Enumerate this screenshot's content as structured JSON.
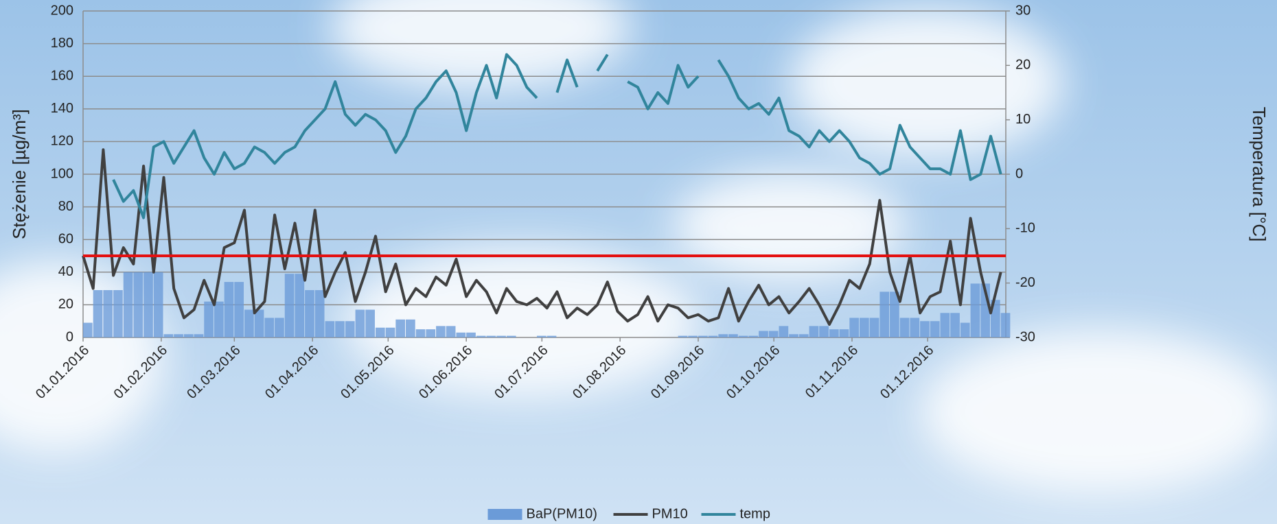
{
  "chart_data": {
    "type": "combo",
    "y_label": "Stężenie [µg/m³]",
    "y2_label": "Temperatura [°C]",
    "x": [
      "01.01.2016",
      "05.01.2016",
      "09.01.2016",
      "13.01.2016",
      "17.01.2016",
      "21.01.2016",
      "25.01.2016",
      "29.01.2016",
      "02.02.2016",
      "06.02.2016",
      "10.02.2016",
      "14.02.2016",
      "18.02.2016",
      "22.02.2016",
      "26.02.2016",
      "01.03.2016",
      "05.03.2016",
      "09.03.2016",
      "13.03.2016",
      "17.03.2016",
      "21.03.2016",
      "25.03.2016",
      "29.03.2016",
      "02.04.2016",
      "06.04.2016",
      "10.04.2016",
      "14.04.2016",
      "18.04.2016",
      "22.04.2016",
      "26.04.2016",
      "30.04.2016",
      "04.05.2016",
      "08.05.2016",
      "12.05.2016",
      "16.05.2016",
      "20.05.2016",
      "24.05.2016",
      "28.05.2016",
      "01.06.2016",
      "05.06.2016",
      "09.06.2016",
      "13.06.2016",
      "17.06.2016",
      "21.06.2016",
      "25.06.2016",
      "29.06.2016",
      "03.07.2016",
      "07.07.2016",
      "11.07.2016",
      "15.07.2016",
      "19.07.2016",
      "23.07.2016",
      "27.07.2016",
      "31.07.2016",
      "04.08.2016",
      "08.08.2016",
      "12.08.2016",
      "16.08.2016",
      "20.08.2016",
      "24.08.2016",
      "28.08.2016",
      "01.09.2016",
      "05.09.2016",
      "09.09.2016",
      "13.09.2016",
      "17.09.2016",
      "21.09.2016",
      "25.09.2016",
      "29.09.2016",
      "03.10.2016",
      "07.10.2016",
      "11.10.2016",
      "15.10.2016",
      "19.10.2016",
      "23.10.2016",
      "27.10.2016",
      "31.10.2016",
      "04.11.2016",
      "08.11.2016",
      "12.11.2016",
      "16.11.2016",
      "20.11.2016",
      "24.11.2016",
      "28.11.2016",
      "02.12.2016",
      "06.12.2016",
      "10.12.2016",
      "14.12.2016",
      "18.12.2016",
      "22.12.2016",
      "26.12.2016",
      "30.12.2016"
    ],
    "series": [
      {
        "name": "BaP(PM10)",
        "kind": "bar",
        "color": "#6b9bd8",
        "values": [
          9,
          29,
          29,
          29,
          40,
          40,
          40,
          40,
          2,
          2,
          2,
          2,
          22,
          22,
          34,
          34,
          17,
          17,
          12,
          12,
          39,
          39,
          29,
          29,
          10,
          10,
          10,
          17,
          17,
          6,
          6,
          11,
          11,
          5,
          5,
          7,
          7,
          3,
          3,
          1,
          1,
          1,
          1,
          0,
          0,
          1,
          1,
          0,
          0,
          0,
          0,
          0,
          0,
          0,
          0,
          0,
          0,
          0,
          0,
          1,
          1,
          1,
          1,
          2,
          2,
          1,
          1,
          4,
          4,
          7,
          2,
          2,
          7,
          7,
          5,
          5,
          12,
          12,
          12,
          28,
          28,
          12,
          12,
          10,
          10,
          15,
          15,
          9,
          33,
          33,
          23,
          15
        ]
      },
      {
        "name": "PM10",
        "kind": "line",
        "color": "#404040",
        "values": [
          50,
          30,
          115,
          38,
          55,
          45,
          105,
          40,
          98,
          30,
          12,
          17,
          35,
          20,
          55,
          58,
          78,
          15,
          22,
          75,
          42,
          70,
          35,
          78,
          25,
          40,
          52,
          22,
          40,
          62,
          28,
          45,
          20,
          30,
          25,
          37,
          32,
          48,
          25,
          35,
          28,
          15,
          30,
          22,
          20,
          24,
          18,
          28,
          12,
          18,
          14,
          20,
          34,
          16,
          10,
          14,
          25,
          10,
          20,
          18,
          12,
          14,
          10,
          12,
          30,
          10,
          22,
          32,
          20,
          25,
          15,
          22,
          30,
          20,
          8,
          20,
          35,
          30,
          45,
          84,
          40,
          22,
          50,
          15,
          25,
          28,
          59,
          20,
          73,
          40,
          15,
          40
        ]
      },
      {
        "name": "temp",
        "kind": "line",
        "axis": "y2",
        "color": "#31859c",
        "values": [
          null,
          null,
          null,
          -1,
          -5,
          -3,
          -8,
          5,
          6,
          2,
          5,
          8,
          3,
          0,
          4,
          1,
          2,
          5,
          4,
          2,
          4,
          5,
          8,
          10,
          12,
          17,
          11,
          9,
          11,
          10,
          8,
          4,
          7,
          12,
          14,
          17,
          19,
          15,
          8,
          15,
          20,
          14,
          22,
          20,
          16,
          14,
          null,
          15,
          21,
          16,
          null,
          19,
          22,
          null,
          17,
          16,
          12,
          15,
          13,
          20,
          16,
          18,
          null,
          21,
          18,
          14,
          12,
          13,
          11,
          14,
          8,
          7,
          5,
          8,
          6,
          8,
          6,
          3,
          2,
          0,
          1,
          9,
          5,
          3,
          1,
          1,
          0,
          8,
          -1,
          0,
          7,
          0
        ]
      }
    ],
    "limit": 50,
    "limit_color": "#e41010",
    "xlim": [
      "01.01.2016",
      "01.01.2017"
    ],
    "xticks": [
      "01.01.2016",
      "01.02.2016",
      "01.03.2016",
      "01.04.2016",
      "01.05.2016",
      "01.06.2016",
      "01.07.2016",
      "01.08.2016",
      "01.09.2016",
      "01.10.2016",
      "01.11.2016",
      "01.12.2016"
    ],
    "ylim": [
      0,
      200
    ],
    "yticks": [
      0,
      20,
      40,
      60,
      80,
      100,
      120,
      140,
      160,
      180,
      200
    ],
    "y2lim": [
      -30,
      30
    ],
    "y2ticks": [
      -30,
      -20,
      -10,
      0,
      10,
      20,
      30
    ],
    "grid": true,
    "legend": "bottom"
  }
}
